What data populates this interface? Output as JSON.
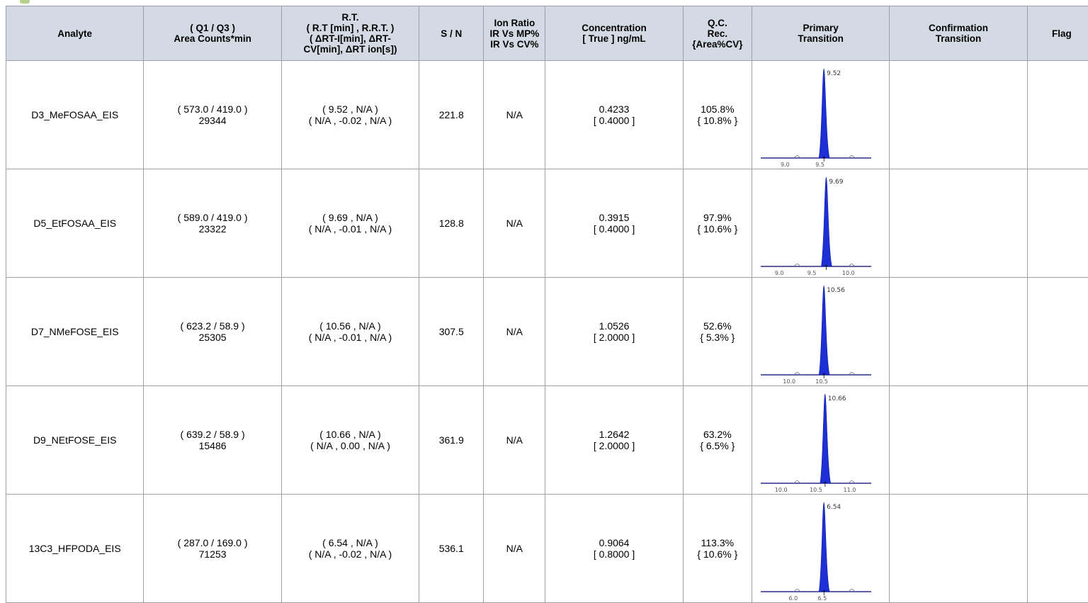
{
  "headers": {
    "analyte": [
      "Analyte"
    ],
    "area": [
      "( Q1 / Q3 )",
      "Area Counts*min"
    ],
    "rt": [
      "R.T.",
      "( R.T [min] , R.R.T. )",
      "( ΔRT-I[min], ΔRT-",
      "CV[min], ΔRT ion[s])"
    ],
    "sn": [
      "S / N"
    ],
    "ion_ratio": [
      "Ion Ratio",
      "IR Vs MP%",
      "IR Vs CV%"
    ],
    "conc": [
      "Concentration",
      "[ True ] ng/mL"
    ],
    "qc": [
      "Q.C.",
      "Rec.",
      "{Area%CV}"
    ],
    "primary": [
      "Primary",
      "Transition"
    ],
    "confirmation": [
      "Confirmation",
      "Transition"
    ],
    "flag": [
      "Flag"
    ]
  },
  "rows": [
    {
      "analyte": "D3_MeFOSAA_EIS",
      "area_line1": "( 573.0 / 419.0 )",
      "area_line2": "29344",
      "rt_line1": "( 9.52 , N/A )",
      "rt_line2": "( N/A , -0.02 , N/A )",
      "sn": "221.8",
      "ion_ratio": "N/A",
      "conc_line1": "0.4233",
      "conc_line2": "[ 0.4000 ]",
      "qc_line1": "105.8%",
      "qc_line2": "{ 10.8% }",
      "chrom": {
        "peak_label": "9.52",
        "ticks": [
          "9.0",
          "9.5"
        ],
        "tick_pos": [
          0.25,
          0.55
        ],
        "peak_pos": 0.58,
        "peak_color": "#1f2fd6"
      }
    },
    {
      "analyte": "D5_EtFOSAA_EIS",
      "area_line1": "( 589.0 / 419.0 )",
      "area_line2": "23322",
      "rt_line1": "( 9.69 , N/A )",
      "rt_line2": "( N/A , -0.01 , N/A )",
      "sn": "128.8",
      "ion_ratio": "N/A",
      "conc_line1": "0.3915",
      "conc_line2": "[ 0.4000 ]",
      "qc_line1": "97.9%",
      "qc_line2": "{ 10.6% }",
      "chrom": {
        "peak_label": "9.69",
        "ticks": [
          "9.0",
          "9.5",
          "10.0"
        ],
        "tick_pos": [
          0.2,
          0.48,
          0.78
        ],
        "peak_pos": 0.6,
        "peak_color": "#1f2fd6"
      }
    },
    {
      "analyte": "D7_NMeFOSE_EIS",
      "area_line1": "( 623.2 / 58.9 )",
      "area_line2": "25305",
      "rt_line1": "( 10.56 , N/A )",
      "rt_line2": "( N/A , -0.01 , N/A )",
      "sn": "307.5",
      "ion_ratio": "N/A",
      "conc_line1": "1.0526",
      "conc_line2": "[ 2.0000 ]",
      "qc_line1": "52.6%",
      "qc_line2": "{ 5.3% }",
      "chrom": {
        "peak_label": "10.56",
        "ticks": [
          "10.0",
          "10.5"
        ],
        "tick_pos": [
          0.27,
          0.55
        ],
        "peak_pos": 0.58,
        "peak_color": "#1f2fd6"
      }
    },
    {
      "analyte": "D9_NEtFOSE_EIS",
      "area_line1": "( 639.2 / 58.9 )",
      "area_line2": "15486",
      "rt_line1": "( 10.66 , N/A )",
      "rt_line2": "( N/A , 0.00 , N/A )",
      "sn": "361.9",
      "ion_ratio": "N/A",
      "conc_line1": "1.2642",
      "conc_line2": "[ 2.0000 ]",
      "qc_line1": "63.2%",
      "qc_line2": "{ 6.5% }",
      "chrom": {
        "peak_label": "10.66",
        "ticks": [
          "10.0",
          "10.5",
          "11.0"
        ],
        "tick_pos": [
          0.2,
          0.5,
          0.79
        ],
        "peak_pos": 0.59,
        "peak_color": "#1f2fd6"
      }
    },
    {
      "analyte": "13C3_HFPODA_EIS",
      "area_line1": "( 287.0 / 169.0 )",
      "area_line2": "71253",
      "rt_line1": "( 6.54 , N/A )",
      "rt_line2": "( N/A , -0.02 , N/A )",
      "sn": "536.1",
      "ion_ratio": "N/A",
      "conc_line1": "0.9064",
      "conc_line2": "[ 0.8000 ]",
      "qc_line1": "113.3%",
      "qc_line2": "{ 10.6% }",
      "chrom": {
        "peak_label": "6.54",
        "ticks": [
          "6.0",
          "6.5"
        ],
        "tick_pos": [
          0.32,
          0.57
        ],
        "peak_pos": 0.58,
        "peak_color": "#1f2fd6"
      }
    }
  ]
}
